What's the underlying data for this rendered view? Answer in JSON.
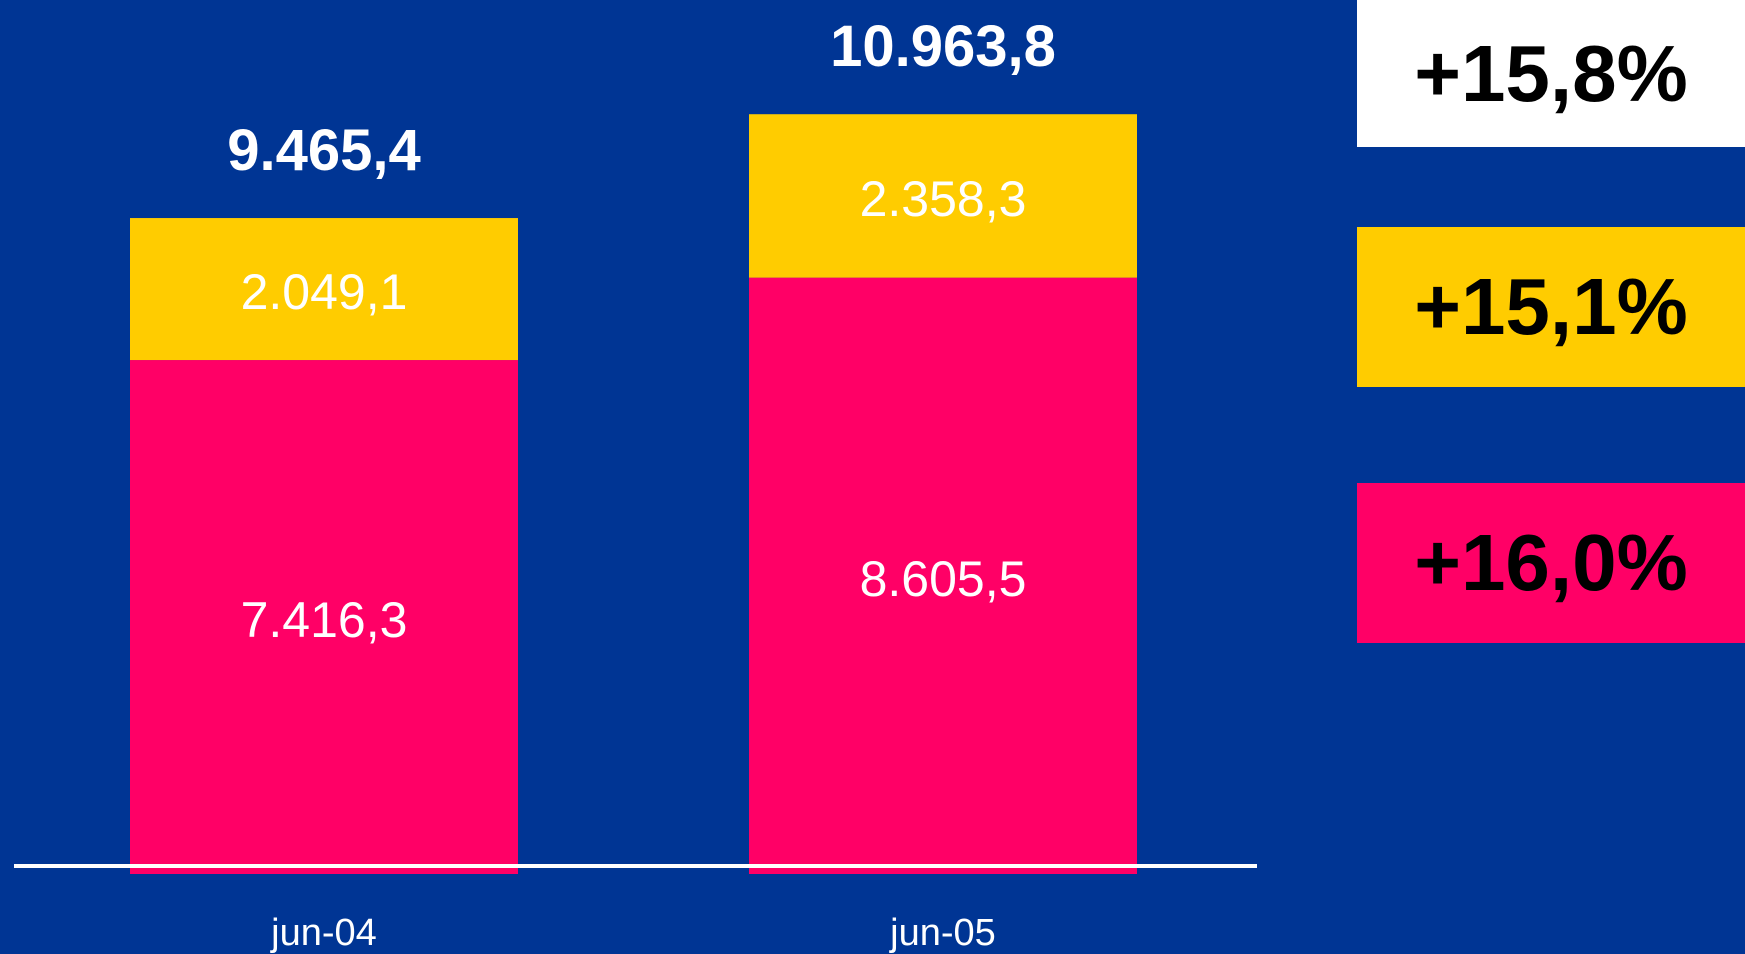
{
  "colors": {
    "background": "#003594",
    "segment_bottom": "#FF0066",
    "segment_top": "#FFCC00",
    "total_box": "#FFFFFF",
    "label_text": "#FFFFFF",
    "axis_line": "#FFFFFF"
  },
  "growth": {
    "total": "+15,8%",
    "top_segment": "+15,1%",
    "bottom_segment": "+16,0%"
  },
  "chart_data": {
    "type": "bar",
    "stacked": true,
    "categories": [
      "jun-04",
      "jun-05"
    ],
    "series": [
      {
        "values": [
          7416.3,
          8605.5
        ],
        "labels": [
          "7.416,3",
          "8.605,5"
        ],
        "color": "#FF0066"
      },
      {
        "values": [
          2049.1,
          2358.3
        ],
        "labels": [
          "2.049,1",
          "2.358,3"
        ],
        "color": "#FFCC00"
      }
    ],
    "totals": [
      9465.4,
      10963.8
    ],
    "total_labels": [
      "9.465,4",
      "10.963,8"
    ],
    "title": "",
    "xlabel": "",
    "ylabel": "",
    "ylim": [
      0,
      12000
    ],
    "grid": false,
    "legend": "none"
  }
}
